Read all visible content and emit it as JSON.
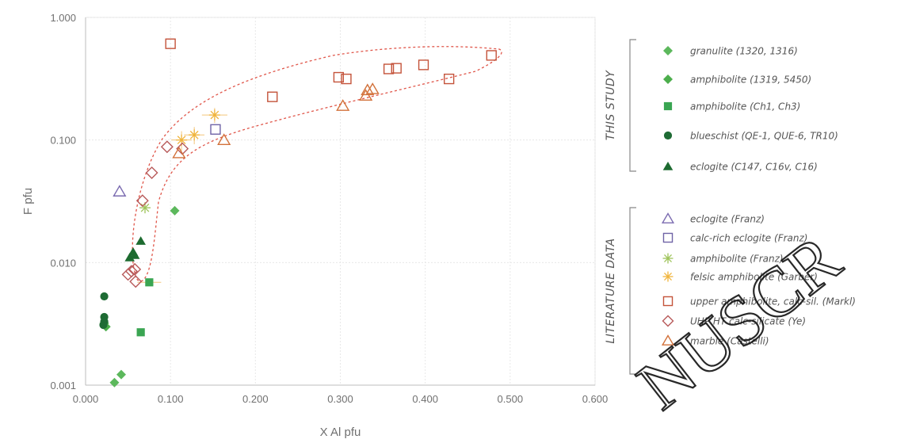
{
  "chart_data": {
    "type": "scatter",
    "xlabel": "X Al pfu",
    "ylabel": "F pfu",
    "x_range": [
      0.0,
      0.6
    ],
    "y_range": [
      0.001,
      1.0
    ],
    "y_scale": "log",
    "x_ticks": [
      "0.000",
      "0.100",
      "0.200",
      "0.300",
      "0.400",
      "0.500",
      "0.600"
    ],
    "x_tick_values": [
      0,
      0.1,
      0.2,
      0.3,
      0.4,
      0.5,
      0.6
    ],
    "y_ticks": [
      "0.001",
      "0.010",
      "0.100",
      "1.000"
    ],
    "y_tick_values": [
      0.001,
      0.01,
      0.1,
      1.0
    ],
    "grid": true,
    "legend_placement": "right",
    "groups": [
      {
        "title": "THIS STUDY",
        "series_indices": [
          0,
          1,
          2,
          3,
          4
        ]
      },
      {
        "title": "LITERATURE DATA",
        "series_indices": [
          5,
          6,
          7,
          8,
          9,
          10,
          11
        ]
      }
    ],
    "series": [
      {
        "name": "granulite (1320, 1316)",
        "marker": "diamond",
        "filled": true,
        "color": "#5cb85c",
        "points": [
          [
            0.034,
            0.00105
          ],
          [
            0.042,
            0.00122
          ],
          [
            0.105,
            0.0265
          ]
        ]
      },
      {
        "name": "amphibolite (1319, 5450)",
        "marker": "diamond",
        "filled": true,
        "color": "#4cae4c",
        "points": [
          [
            0.022,
            0.0032
          ],
          [
            0.024,
            0.003
          ]
        ]
      },
      {
        "name": "amphibolite (Ch1, Ch3)",
        "marker": "square",
        "filled": true,
        "color": "#3aa552",
        "points": [
          [
            0.065,
            0.0027
          ],
          [
            0.075,
            0.0069
          ]
        ]
      },
      {
        "name": "blueschist (QE-1, QUE-6, TR10)",
        "marker": "circle",
        "filled": true,
        "color": "#1e6b34",
        "points": [
          [
            0.022,
            0.0053
          ],
          [
            0.022,
            0.0036
          ],
          [
            0.022,
            0.0033
          ],
          [
            0.021,
            0.0031
          ]
        ]
      },
      {
        "name": "eclogite (C147, C16v, C16)",
        "marker": "triangle",
        "filled": true,
        "color": "#1d6b30",
        "points": [
          [
            0.052,
            0.011
          ],
          [
            0.056,
            0.0122
          ],
          [
            0.065,
            0.015
          ],
          [
            0.058,
            0.0115
          ]
        ]
      },
      {
        "name": "eclogite (Franz)",
        "marker": "triangle",
        "filled": false,
        "color": "#7b6bb0",
        "points": [
          [
            0.04,
            0.038
          ]
        ]
      },
      {
        "name": "calc-rich eclogite (Franz)",
        "marker": "square",
        "filled": false,
        "color": "#6f63a6",
        "points": [
          [
            0.153,
            0.122
          ]
        ]
      },
      {
        "name": "amphibolite (Franz)",
        "marker": "star",
        "filled": false,
        "color": "#9ec45a",
        "points": [
          [
            0.07,
            0.028
          ]
        ]
      },
      {
        "name": "felsic amphibolite (Garber)",
        "marker": "star",
        "filled": false,
        "color": "#f0b43c",
        "points": [
          [
            0.113,
            0.1
          ],
          [
            0.128,
            0.11
          ],
          [
            0.152,
            0.16
          ]
        ]
      },
      {
        "name": "upper amphibolite, calc-sil. (Markl)",
        "marker": "square",
        "filled": false,
        "color": "#c4533a",
        "points": [
          [
            0.1,
            0.61
          ],
          [
            0.22,
            0.225
          ],
          [
            0.298,
            0.325
          ],
          [
            0.307,
            0.315
          ],
          [
            0.357,
            0.38
          ],
          [
            0.366,
            0.385
          ],
          [
            0.398,
            0.41
          ],
          [
            0.428,
            0.315
          ],
          [
            0.478,
            0.49
          ]
        ]
      },
      {
        "name": "UHP HT calc-silicate (Ye)",
        "marker": "diamond",
        "filled": false,
        "color": "#b85a5a",
        "points": [
          [
            0.05,
            0.008
          ],
          [
            0.054,
            0.0085
          ],
          [
            0.058,
            0.0088
          ],
          [
            0.059,
            0.007
          ],
          [
            0.067,
            0.032
          ],
          [
            0.078,
            0.054
          ],
          [
            0.096,
            0.088
          ],
          [
            0.114,
            0.085
          ]
        ]
      },
      {
        "name": "marble (Castelli)",
        "marker": "triangle",
        "filled": false,
        "color": "#d2713a",
        "points": [
          [
            0.11,
            0.078
          ],
          [
            0.163,
            0.1
          ],
          [
            0.303,
            0.19
          ],
          [
            0.33,
            0.23
          ],
          [
            0.332,
            0.255
          ],
          [
            0.338,
            0.26
          ]
        ]
      }
    ]
  }
}
